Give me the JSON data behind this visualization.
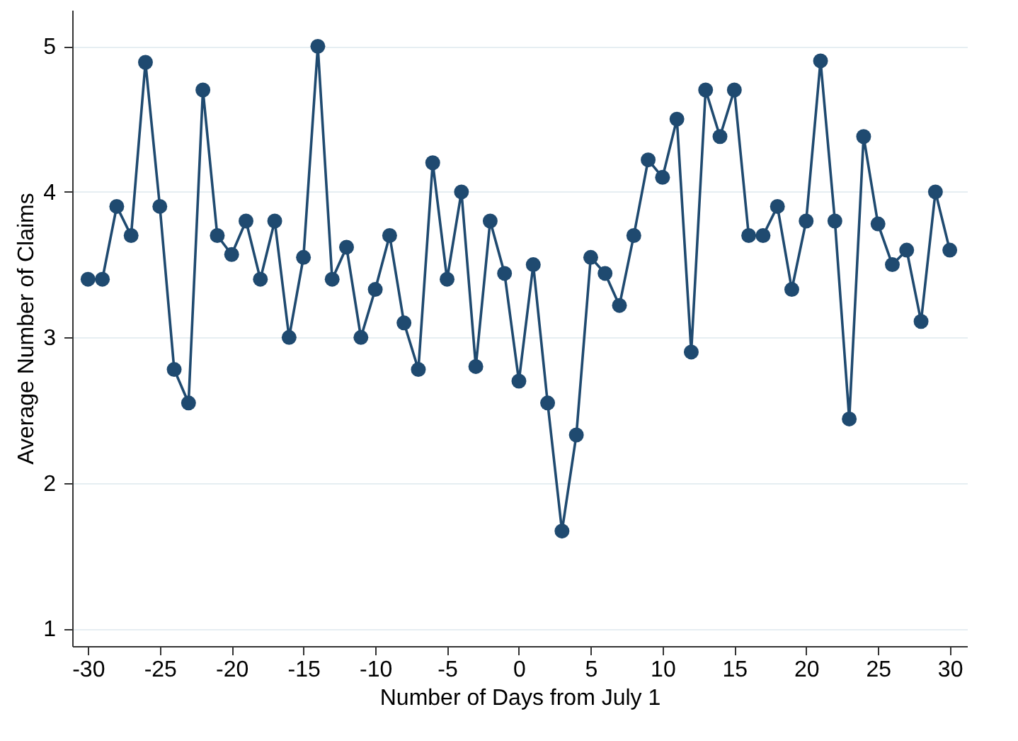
{
  "chart_data": {
    "type": "line",
    "xlabel": "Number of Days from July 1",
    "ylabel": "Average Number of Claims",
    "x": [
      -30,
      -29,
      -28,
      -27,
      -26,
      -25,
      -24,
      -23,
      -22,
      -21,
      -20,
      -19,
      -18,
      -17,
      -16,
      -15,
      -14,
      -13,
      -12,
      -11,
      -10,
      -9,
      -8,
      -7,
      -6,
      -5,
      -4,
      -3,
      -2,
      -1,
      0,
      1,
      2,
      3,
      4,
      5,
      6,
      7,
      8,
      9,
      10,
      11,
      12,
      13,
      14,
      15,
      16,
      17,
      18,
      19,
      20,
      21,
      22,
      23,
      24,
      25,
      26,
      27,
      28,
      29,
      30
    ],
    "series": [
      {
        "color": "#1f4a70",
        "values": [
          3.4,
          3.4,
          3.9,
          3.7,
          4.89,
          3.9,
          2.78,
          2.55,
          4.7,
          3.7,
          3.57,
          3.8,
          3.4,
          3.8,
          3.0,
          3.55,
          5.0,
          3.4,
          3.62,
          3.0,
          3.33,
          3.7,
          3.1,
          2.78,
          4.2,
          3.4,
          4.0,
          2.8,
          3.8,
          3.44,
          2.7,
          3.5,
          2.55,
          1.67,
          2.33,
          3.55,
          3.44,
          3.22,
          3.7,
          4.22,
          4.1,
          4.5,
          2.9,
          4.7,
          4.38,
          4.7,
          3.7,
          3.7,
          3.9,
          3.33,
          3.8,
          4.9,
          3.8,
          2.44,
          4.38,
          3.78,
          3.5,
          3.6,
          3.11,
          4.0,
          3.6
        ]
      }
    ],
    "xlim": [
      -31.1,
      31.2
    ],
    "ylim": [
      0.88,
      5.25
    ],
    "xticks": [
      -30,
      -25,
      -20,
      -15,
      -10,
      -5,
      0,
      5,
      10,
      15,
      20,
      25,
      30
    ],
    "yticks": [
      1,
      2,
      3,
      4,
      5
    ],
    "grid": "y",
    "marker": "circle",
    "line_style": "solid",
    "legend": false
  }
}
